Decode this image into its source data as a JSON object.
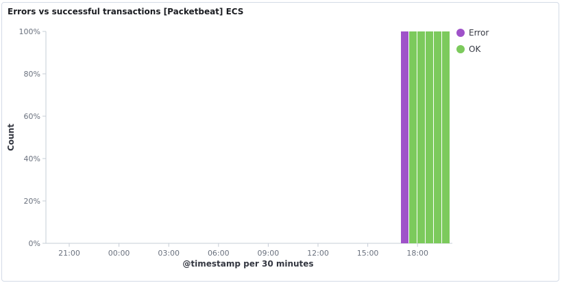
{
  "panel": {
    "title": "Errors vs successful transactions [Packetbeat] ECS"
  },
  "chart_data": {
    "type": "bar",
    "stacking": "percentage",
    "xlabel": "@timestamp per 30 minutes",
    "ylabel": "Count",
    "x_tick_labels": [
      "21:00",
      "00:00",
      "03:00",
      "06:00",
      "09:00",
      "12:00",
      "15:00",
      "18:00"
    ],
    "y_tick_labels": [
      "0%",
      "20%",
      "40%",
      "60%",
      "80%",
      "100%"
    ],
    "ylim": [
      0,
      100
    ],
    "grid": false,
    "legend_position": "right",
    "categories": [
      "17:00",
      "17:30",
      "18:00",
      "18:30",
      "19:00",
      "19:30"
    ],
    "series": [
      {
        "name": "Error",
        "color": "#9f52c9",
        "values": [
          100,
          0,
          0,
          0,
          0,
          0
        ]
      },
      {
        "name": "OK",
        "color": "#7cca5c",
        "values": [
          0,
          100,
          100,
          100,
          100,
          100
        ]
      }
    ]
  }
}
